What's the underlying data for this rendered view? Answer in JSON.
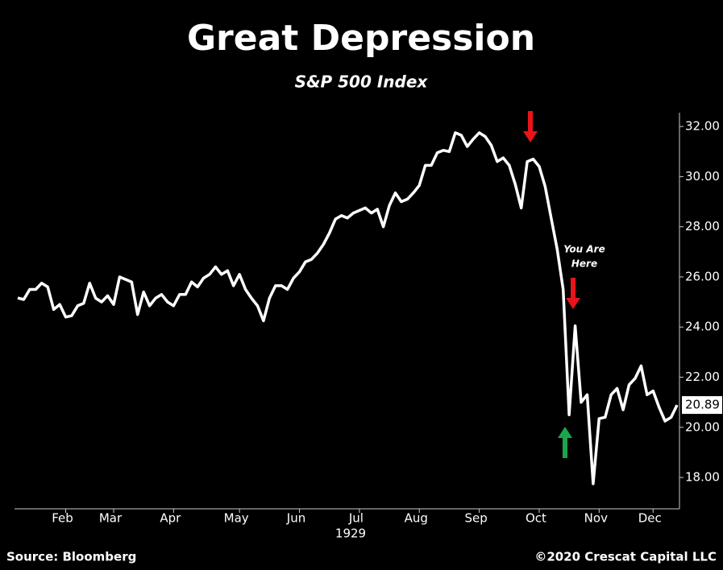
{
  "chart_data": {
    "type": "line",
    "title": "Great Depression",
    "subtitle": "S&P 500 Index",
    "x_label": "1929",
    "annotation": [
      "You Are",
      "Here"
    ],
    "source": "Source: Bloomberg",
    "credit": "©2020 Crescat Capital LLC",
    "color": "#ffffff",
    "categories": [
      null,
      null,
      null,
      null,
      null,
      null,
      null,
      null,
      "Feb",
      null,
      null,
      null,
      null,
      null,
      null,
      null,
      "Mar",
      null,
      null,
      null,
      null,
      null,
      null,
      null,
      null,
      null,
      "Apr",
      null,
      null,
      null,
      null,
      null,
      null,
      null,
      null,
      null,
      null,
      "May",
      null,
      null,
      null,
      null,
      null,
      null,
      null,
      null,
      null,
      "Jun",
      null,
      null,
      null,
      null,
      null,
      null,
      null,
      null,
      null,
      "Jul",
      null,
      null,
      null,
      null,
      null,
      null,
      null,
      null,
      null,
      "Aug",
      null,
      null,
      null,
      null,
      null,
      null,
      null,
      null,
      null,
      "Sep",
      null,
      null,
      null,
      null,
      null,
      null,
      null,
      null,
      null,
      "Oct",
      null,
      null,
      null,
      null,
      null,
      null,
      null,
      null,
      null,
      "Nov",
      null,
      null,
      null,
      null,
      null,
      null,
      null,
      null,
      "Dec",
      null,
      null,
      null,
      null
    ],
    "values": [
      25.16,
      25.1,
      25.5,
      25.5,
      25.75,
      25.6,
      24.7,
      24.9,
      24.4,
      24.45,
      24.85,
      24.95,
      25.75,
      25.15,
      25.0,
      25.25,
      24.9,
      26.0,
      25.9,
      25.8,
      24.5,
      25.4,
      24.85,
      25.15,
      25.3,
      25.0,
      24.85,
      25.3,
      25.3,
      25.8,
      25.6,
      25.95,
      26.1,
      26.4,
      26.1,
      26.25,
      25.65,
      26.1,
      25.5,
      25.15,
      24.85,
      24.25,
      25.15,
      25.65,
      25.65,
      25.5,
      25.95,
      26.2,
      26.6,
      26.7,
      26.95,
      27.3,
      27.75,
      28.3,
      28.45,
      28.35,
      28.55,
      28.65,
      28.75,
      28.55,
      28.7,
      28.0,
      28.85,
      29.35,
      29.0,
      29.1,
      29.35,
      29.65,
      30.45,
      30.45,
      30.95,
      31.05,
      31.0,
      31.75,
      31.65,
      31.2,
      31.5,
      31.75,
      31.6,
      31.25,
      30.6,
      30.75,
      30.45,
      29.7,
      28.75,
      30.6,
      30.7,
      30.4,
      29.6,
      28.35,
      27.1,
      25.5,
      20.5,
      24.05,
      21.0,
      21.3,
      17.75,
      20.35,
      20.4,
      21.3,
      21.55,
      20.7,
      21.7,
      21.95,
      22.45,
      21.3,
      21.45,
      20.8,
      20.25,
      20.4,
      20.89
    ],
    "ylim": [
      16.75,
      32.55
    ],
    "yticks": [
      {
        "value": 18,
        "label": "18.00"
      },
      {
        "value": 20,
        "label": "20.00"
      },
      {
        "value": 22,
        "label": "22.00"
      },
      {
        "value": 24,
        "label": "24.00"
      },
      {
        "value": 26,
        "label": "26.00"
      },
      {
        "value": 28,
        "label": "28.00"
      },
      {
        "value": 30,
        "label": "30.00"
      },
      {
        "value": 32,
        "label": "32.00"
      }
    ],
    "grid": false
  }
}
